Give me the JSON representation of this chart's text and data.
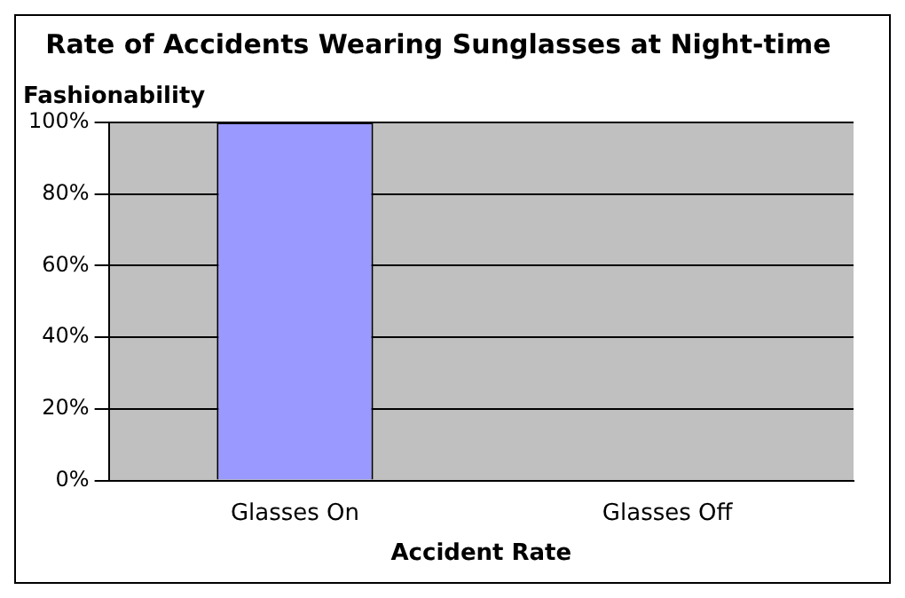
{
  "chart_data": {
    "type": "bar",
    "title": "Rate of Accidents Wearing Sunglasses at Night-time",
    "xlabel": "Accident Rate",
    "ylabel": "Fashionability",
    "categories": [
      "Glasses On",
      "Glasses Off"
    ],
    "values": [
      100,
      0
    ],
    "color": "#9999ff",
    "ylim": [
      0,
      100
    ],
    "yticks": [
      {
        "value": 0,
        "label": "0%"
      },
      {
        "value": 20,
        "label": "20%"
      },
      {
        "value": 40,
        "label": "40%"
      },
      {
        "value": 60,
        "label": "60%"
      },
      {
        "value": 80,
        "label": "80%"
      },
      {
        "value": 100,
        "label": "100%"
      }
    ],
    "grid": "y",
    "legend": false
  }
}
